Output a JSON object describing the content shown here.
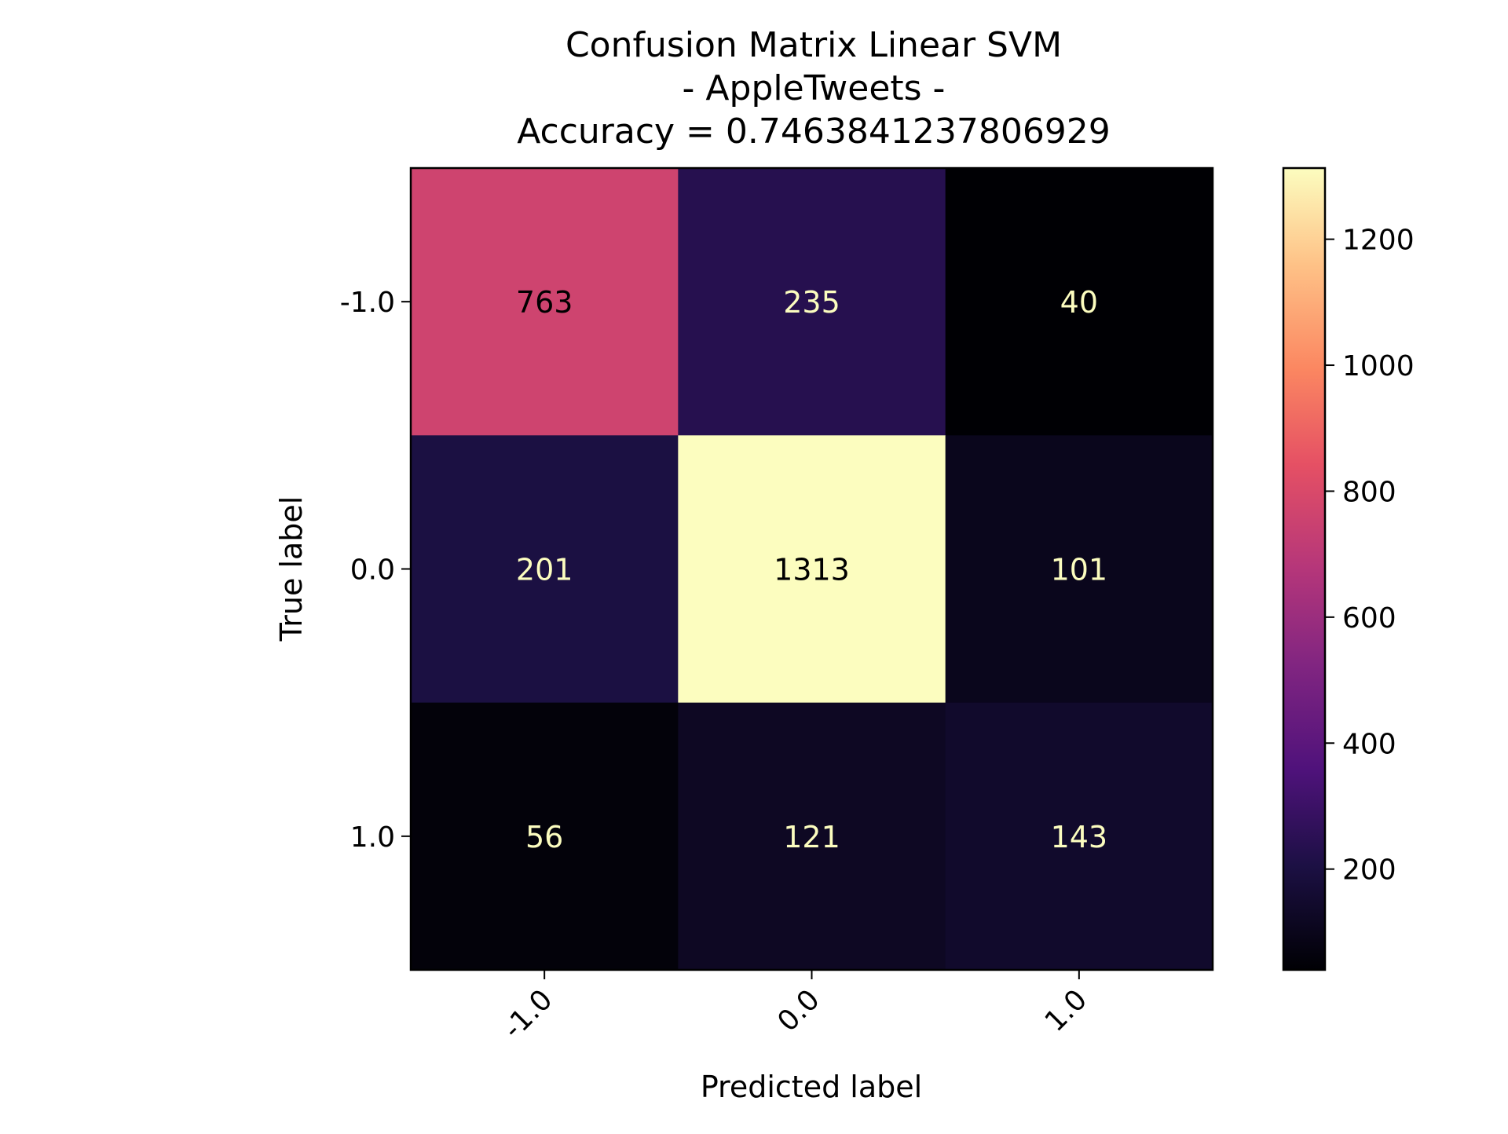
{
  "chart_data": {
    "type": "heatmap",
    "title_lines": [
      "Confusion Matrix Linear SVM",
      "- AppleTweets -",
      "Accuracy = 0.7463841237806929"
    ],
    "xlabel": "Predicted label",
    "ylabel": "True label",
    "x_categories": [
      "-1.0",
      "0.0",
      "1.0"
    ],
    "y_categories": [
      "-1.0",
      "0.0",
      "1.0"
    ],
    "matrix": [
      [
        763,
        235,
        40
      ],
      [
        201,
        1313,
        101
      ],
      [
        56,
        121,
        143
      ]
    ],
    "colormap": "magma",
    "colorbar": {
      "min": 40,
      "max": 1313,
      "ticks": [
        200,
        400,
        600,
        800,
        1000,
        1200
      ],
      "tick_labels": [
        "200",
        "400",
        "600",
        "800",
        "1000",
        "1200"
      ]
    },
    "text_color_dark": "#000000",
    "text_color_light": "#fcfdbf"
  }
}
